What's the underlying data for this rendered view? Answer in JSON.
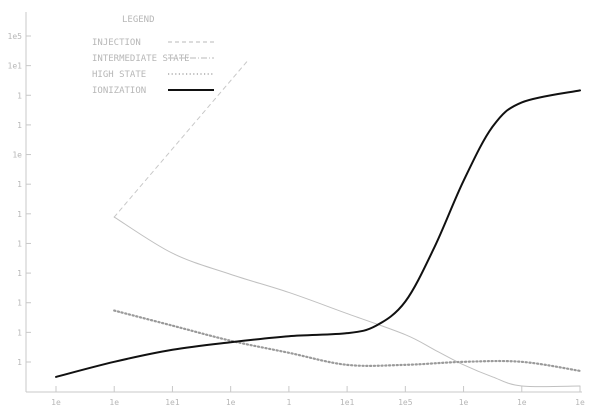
{
  "chart_data": {
    "type": "line",
    "title": "",
    "xlabel": "",
    "ylabel": "",
    "x_ticks": [
      "1e",
      "1e",
      "1e1",
      "1e",
      "1",
      "1e1",
      "1e5",
      "1e",
      "1e",
      "1e"
    ],
    "y_ticks": [
      "1e5",
      "1e1",
      "1",
      "1",
      "1e",
      "1",
      "1",
      "1",
      "1",
      "1",
      "1",
      "1"
    ],
    "legend": {
      "title": "LEGEND",
      "placement": "top-left",
      "entries": [
        {
          "label": "INJECTION",
          "style": "dashed",
          "color": "#c8c8c8"
        },
        {
          "label": "INTERMEDIATE STATE",
          "style": "dash-dot",
          "color": "#c8c8c8"
        },
        {
          "label": "HIGH STATE",
          "style": "dotted",
          "color": "#9a9a9a"
        },
        {
          "label": "IONIZATION",
          "style": "solid",
          "color": "#111111"
        }
      ]
    },
    "x": [
      1,
      2,
      3,
      4,
      5,
      6,
      7,
      8,
      9,
      10
    ],
    "xlim": [
      1,
      10
    ],
    "ylim": [
      0,
      12
    ],
    "series": [
      {
        "name": "INJECTION",
        "x": [
          2,
          4.3
        ],
        "y": [
          5.8,
          11
        ],
        "color": "#c8c8c8",
        "width": 1.0,
        "dash": "4,4"
      },
      {
        "name": "INTERMEDIATE STATE",
        "x": [
          2,
          3,
          4,
          5,
          6,
          7,
          7.5,
          8,
          8.5,
          9,
          10
        ],
        "y": [
          5.8,
          4.6,
          3.9,
          3.3,
          2.6,
          1.9,
          1.4,
          0.9,
          0.5,
          0.2,
          0.2
        ],
        "color": "#c0c0c0",
        "width": 1.0,
        "dash": ""
      },
      {
        "name": "HIGH STATE",
        "x": [
          2,
          3,
          4,
          5,
          6,
          7,
          8,
          9,
          10
        ],
        "y": [
          2.7,
          2.2,
          1.7,
          1.3,
          0.9,
          0.9,
          1.0,
          1.0,
          0.7
        ],
        "color": "#9a9a9a",
        "width": 2.2,
        "dash": "1.2,2.6"
      },
      {
        "name": "IONIZATION",
        "x": [
          1,
          2,
          3,
          4,
          5,
          6,
          6.5,
          7,
          7.5,
          8,
          8.5,
          9,
          10
        ],
        "y": [
          0.5,
          1.0,
          1.4,
          1.65,
          1.85,
          1.95,
          2.2,
          3.0,
          4.8,
          7.0,
          8.8,
          9.6,
          10.0
        ],
        "color": "#111111",
        "width": 2.0,
        "dash": ""
      }
    ]
  }
}
